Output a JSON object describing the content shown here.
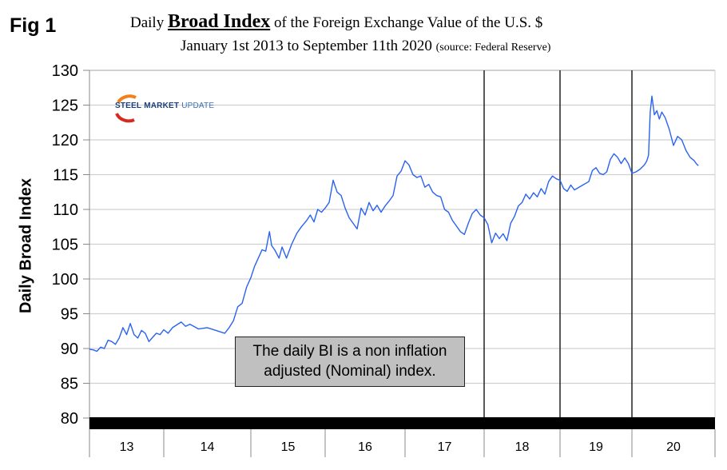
{
  "figure_label": "Fig 1",
  "title": {
    "prefix": "Daily ",
    "bold": "Broad Index",
    "suffix": " of the Foreign Exchange Value of the U.S. $",
    "line2": "January 1st 2013 to September 11th 2020 ",
    "source": "(source: Federal Reserve)"
  },
  "logo": {
    "word1": "STEEL",
    "word2": "MARKET",
    "word3": "UPDATE"
  },
  "annotation": {
    "line1": "The daily BI is a non inflation",
    "line2": "adjusted (Nominal) index."
  },
  "colors": {
    "series": "#2a62f0",
    "grid": "#d0d0d0",
    "axis": "#888888",
    "bar": "#000000",
    "annotation_bg": "#c0c0c0",
    "logo_orange": "#f07f1c",
    "logo_red": "#d62a1e"
  },
  "chart_data": {
    "type": "line",
    "title": "Daily Broad Index of the Foreign Exchange Value of the U.S. $",
    "subtitle": "January 1st 2013 to September 11th 2020 (source: Federal Reserve)",
    "xlabel": "",
    "ylabel": "Daily Broad Index",
    "ylim": [
      80,
      130
    ],
    "yticks": [
      80,
      85,
      90,
      95,
      100,
      105,
      110,
      115,
      120,
      125,
      130
    ],
    "xlim": [
      2013,
      2021
    ],
    "xtick_labels": [
      "13",
      "14",
      "15",
      "16",
      "17",
      "18",
      "19",
      "20"
    ],
    "year_boundaries": [
      2013,
      2014,
      2015,
      2016,
      2017,
      2018,
      2019,
      2020,
      2021
    ],
    "vertical_markers": [
      2018,
      2019,
      2020
    ],
    "grid": true,
    "series": [
      {
        "name": "Daily Broad Index",
        "points": [
          [
            2013.0,
            89.9
          ],
          [
            2013.05,
            89.8
          ],
          [
            2013.1,
            89.6
          ],
          [
            2013.15,
            90.2
          ],
          [
            2013.2,
            90.0
          ],
          [
            2013.25,
            91.2
          ],
          [
            2013.3,
            91.0
          ],
          [
            2013.35,
            90.6
          ],
          [
            2013.4,
            91.5
          ],
          [
            2013.45,
            93.0
          ],
          [
            2013.5,
            92.0
          ],
          [
            2013.55,
            93.6
          ],
          [
            2013.6,
            92.0
          ],
          [
            2013.65,
            91.5
          ],
          [
            2013.7,
            92.6
          ],
          [
            2013.75,
            92.2
          ],
          [
            2013.8,
            91.0
          ],
          [
            2013.85,
            91.6
          ],
          [
            2013.9,
            92.2
          ],
          [
            2013.95,
            92.0
          ],
          [
            2014.0,
            92.7
          ],
          [
            2014.05,
            92.2
          ],
          [
            2014.1,
            93.0
          ],
          [
            2014.2,
            93.8
          ],
          [
            2014.25,
            93.2
          ],
          [
            2014.3,
            93.5
          ],
          [
            2014.4,
            92.8
          ],
          [
            2014.5,
            93.0
          ],
          [
            2014.6,
            92.6
          ],
          [
            2014.7,
            92.2
          ],
          [
            2014.75,
            93.0
          ],
          [
            2014.8,
            94.0
          ],
          [
            2014.85,
            96.0
          ],
          [
            2014.9,
            96.5
          ],
          [
            2014.95,
            98.8
          ],
          [
            2015.0,
            100.2
          ],
          [
            2015.05,
            101.8
          ],
          [
            2015.1,
            103.0
          ],
          [
            2015.15,
            104.2
          ],
          [
            2015.2,
            104.0
          ],
          [
            2015.25,
            106.8
          ],
          [
            2015.28,
            104.8
          ],
          [
            2015.32,
            104.2
          ],
          [
            2015.38,
            103.0
          ],
          [
            2015.42,
            104.6
          ],
          [
            2015.48,
            103.0
          ],
          [
            2015.55,
            105.0
          ],
          [
            2015.62,
            106.6
          ],
          [
            2015.68,
            107.5
          ],
          [
            2015.75,
            108.4
          ],
          [
            2015.8,
            109.2
          ],
          [
            2015.85,
            108.2
          ],
          [
            2015.9,
            110.0
          ],
          [
            2015.95,
            109.6
          ],
          [
            2016.0,
            110.2
          ],
          [
            2016.05,
            111.0
          ],
          [
            2016.1,
            114.2
          ],
          [
            2016.15,
            112.5
          ],
          [
            2016.2,
            112.0
          ],
          [
            2016.25,
            110.2
          ],
          [
            2016.3,
            108.8
          ],
          [
            2016.35,
            108.0
          ],
          [
            2016.4,
            107.2
          ],
          [
            2016.45,
            110.2
          ],
          [
            2016.5,
            109.2
          ],
          [
            2016.55,
            111.0
          ],
          [
            2016.6,
            109.8
          ],
          [
            2016.65,
            110.6
          ],
          [
            2016.7,
            109.6
          ],
          [
            2016.75,
            110.5
          ],
          [
            2016.8,
            111.2
          ],
          [
            2016.85,
            112.0
          ],
          [
            2016.9,
            114.8
          ],
          [
            2016.95,
            115.5
          ],
          [
            2017.0,
            117.0
          ],
          [
            2017.05,
            116.4
          ],
          [
            2017.1,
            115.0
          ],
          [
            2017.15,
            114.6
          ],
          [
            2017.2,
            114.8
          ],
          [
            2017.25,
            113.2
          ],
          [
            2017.3,
            113.6
          ],
          [
            2017.35,
            112.5
          ],
          [
            2017.4,
            112.0
          ],
          [
            2017.45,
            111.8
          ],
          [
            2017.5,
            110.0
          ],
          [
            2017.55,
            109.6
          ],
          [
            2017.6,
            108.4
          ],
          [
            2017.65,
            107.6
          ],
          [
            2017.7,
            106.8
          ],
          [
            2017.75,
            106.4
          ],
          [
            2017.8,
            108.0
          ],
          [
            2017.85,
            109.4
          ],
          [
            2017.9,
            110.0
          ],
          [
            2017.95,
            109.2
          ],
          [
            2018.0,
            108.8
          ],
          [
            2018.05,
            107.8
          ],
          [
            2018.1,
            105.2
          ],
          [
            2018.15,
            106.6
          ],
          [
            2018.2,
            105.8
          ],
          [
            2018.25,
            106.5
          ],
          [
            2018.3,
            105.5
          ],
          [
            2018.35,
            108.0
          ],
          [
            2018.4,
            109.0
          ],
          [
            2018.45,
            110.5
          ],
          [
            2018.5,
            111.0
          ],
          [
            2018.55,
            112.2
          ],
          [
            2018.6,
            111.5
          ],
          [
            2018.65,
            112.4
          ],
          [
            2018.7,
            111.8
          ],
          [
            2018.75,
            113.0
          ],
          [
            2018.8,
            112.2
          ],
          [
            2018.85,
            114.0
          ],
          [
            2018.9,
            114.8
          ],
          [
            2018.95,
            114.4
          ],
          [
            2019.0,
            114.2
          ],
          [
            2019.05,
            113.0
          ],
          [
            2019.1,
            112.6
          ],
          [
            2019.15,
            113.5
          ],
          [
            2019.2,
            112.8
          ],
          [
            2019.3,
            113.4
          ],
          [
            2019.4,
            114.0
          ],
          [
            2019.45,
            115.6
          ],
          [
            2019.5,
            116.0
          ],
          [
            2019.55,
            115.2
          ],
          [
            2019.6,
            115.0
          ],
          [
            2019.65,
            115.4
          ],
          [
            2019.7,
            117.2
          ],
          [
            2019.75,
            118.0
          ],
          [
            2019.8,
            117.5
          ],
          [
            2019.85,
            116.6
          ],
          [
            2019.9,
            117.4
          ],
          [
            2019.95,
            116.6
          ],
          [
            2020.0,
            115.2
          ],
          [
            2020.05,
            115.4
          ],
          [
            2020.1,
            115.8
          ],
          [
            2020.15,
            116.4
          ],
          [
            2020.18,
            117.0
          ],
          [
            2020.2,
            117.8
          ],
          [
            2020.22,
            124.0
          ],
          [
            2020.24,
            126.3
          ],
          [
            2020.27,
            123.6
          ],
          [
            2020.3,
            124.2
          ],
          [
            2020.33,
            123.0
          ],
          [
            2020.36,
            124.0
          ],
          [
            2020.4,
            123.2
          ],
          [
            2020.45,
            121.5
          ],
          [
            2020.5,
            119.2
          ],
          [
            2020.55,
            120.5
          ],
          [
            2020.6,
            120.0
          ],
          [
            2020.65,
            118.5
          ],
          [
            2020.7,
            117.5
          ],
          [
            2020.75,
            117.0
          ],
          [
            2020.78,
            116.5
          ],
          [
            2020.8,
            116.3
          ]
        ]
      }
    ],
    "annotations": [
      "The daily BI is a non inflation adjusted (Nominal) index."
    ]
  }
}
